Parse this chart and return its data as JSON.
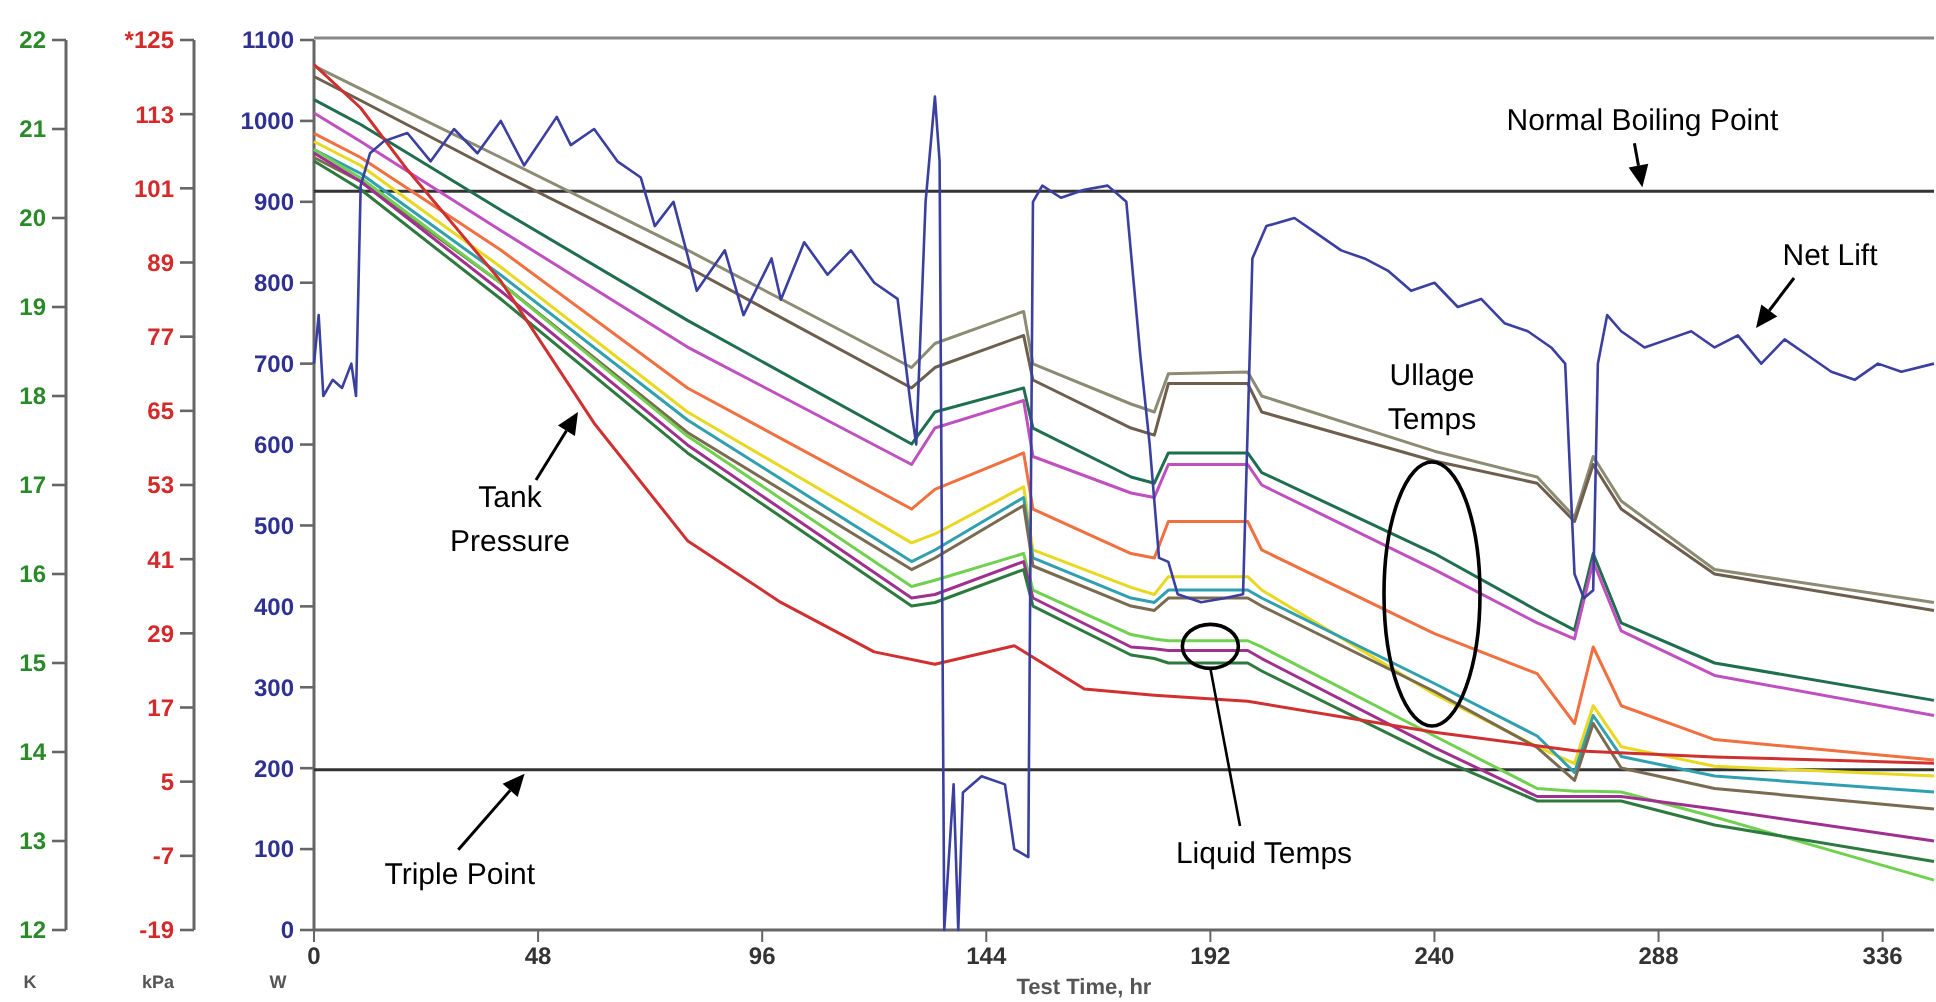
{
  "chart_data": {
    "type": "line",
    "xlabel": "Test Time, hr",
    "ylabel": "K",
    "y2label": "kPa",
    "y3label": "W",
    "xlim": [
      0,
      347
    ],
    "xticks": [
      0,
      48,
      96,
      144,
      192,
      240,
      288,
      336
    ],
    "ylim": [
      12,
      22
    ],
    "yticks": [
      12,
      13,
      14,
      15,
      16,
      17,
      18,
      19,
      20,
      21,
      22
    ],
    "y2lim": [
      -19,
      125
    ],
    "y2ticks": [
      -19,
      -7,
      5,
      17,
      29,
      41,
      53,
      65,
      77,
      89,
      101,
      113,
      {
        "value": 125,
        "label": "*125"
      }
    ],
    "y3lim": [
      0,
      1100
    ],
    "y3ticks": [
      0,
      100,
      200,
      300,
      400,
      500,
      600,
      700,
      800,
      900,
      1000,
      1100
    ],
    "grid": false,
    "line_style": "solid",
    "marker": "none",
    "x": [
      0,
      10,
      40,
      80,
      128,
      133,
      152,
      154,
      175,
      180,
      183,
      200,
      203,
      240,
      262,
      270,
      274,
      280,
      300,
      347
    ],
    "series": [
      {
        "color": "#8c8c74",
        "values": [
          21.71,
          21.45,
          20.68,
          19.64,
          18.32,
          18.59,
          18.95,
          18.36,
          17.91,
          17.82,
          18.25,
          18.27,
          18.0,
          17.38,
          17.09,
          16.64,
          17.32,
          16.82,
          16.05,
          15.68
        ]
      },
      {
        "color": "#6e5e4e",
        "values": [
          21.59,
          21.32,
          20.5,
          19.45,
          18.09,
          18.32,
          18.68,
          18.18,
          17.64,
          17.56,
          18.14,
          18.14,
          17.82,
          17.27,
          17.02,
          16.59,
          17.23,
          16.73,
          16.0,
          15.59
        ]
      },
      {
        "color": "#1f6e4e",
        "values": [
          21.33,
          21.05,
          20.09,
          18.85,
          17.46,
          17.82,
          18.09,
          17.64,
          17.09,
          17.02,
          17.36,
          17.36,
          17.14,
          16.23,
          15.59,
          15.37,
          16.23,
          15.45,
          15.0,
          14.58
        ]
      },
      {
        "color": "#c050c0",
        "values": [
          21.18,
          20.86,
          19.86,
          18.55,
          17.23,
          17.64,
          17.95,
          17.32,
          16.91,
          16.86,
          17.23,
          17.23,
          17.0,
          16.05,
          15.45,
          15.27,
          16.14,
          15.36,
          14.86,
          14.41
        ]
      },
      {
        "color": "#f07040",
        "values": [
          20.95,
          20.68,
          19.64,
          18.09,
          16.73,
          16.95,
          17.36,
          16.73,
          16.23,
          16.18,
          16.59,
          16.59,
          16.27,
          15.33,
          14.88,
          14.32,
          15.18,
          14.52,
          14.14,
          13.91
        ]
      },
      {
        "color": "#e8d820",
        "values": [
          20.86,
          20.59,
          19.45,
          17.82,
          16.35,
          16.45,
          16.98,
          16.27,
          15.85,
          15.77,
          15.97,
          15.97,
          15.82,
          14.65,
          14.06,
          13.87,
          14.52,
          14.06,
          13.84,
          13.73
        ]
      },
      {
        "color": "#30a0b0",
        "values": [
          20.77,
          20.5,
          19.36,
          17.73,
          16.14,
          16.27,
          16.86,
          16.18,
          15.73,
          15.68,
          15.82,
          15.82,
          15.73,
          14.77,
          14.18,
          13.77,
          14.41,
          13.95,
          13.73,
          13.55
        ]
      },
      {
        "color": "#7a6a50",
        "values": [
          20.68,
          20.41,
          19.27,
          17.59,
          16.05,
          16.18,
          16.77,
          16.09,
          15.64,
          15.59,
          15.73,
          15.73,
          15.64,
          14.68,
          14.05,
          13.68,
          14.32,
          13.82,
          13.59,
          13.36
        ]
      },
      {
        "color": "#70d050",
        "values": [
          20.77,
          20.45,
          19.27,
          17.55,
          15.86,
          15.93,
          16.23,
          15.82,
          15.32,
          15.27,
          15.25,
          15.25,
          15.18,
          14.18,
          13.59,
          13.56,
          13.56,
          13.55,
          13.27,
          12.56
        ]
      },
      {
        "color": "#a03090",
        "values": [
          20.73,
          20.41,
          19.18,
          17.45,
          15.73,
          15.77,
          16.14,
          15.73,
          15.18,
          15.16,
          15.14,
          15.14,
          15.05,
          14.05,
          13.5,
          13.5,
          13.5,
          13.5,
          13.36,
          13.0
        ]
      },
      {
        "color": "#2e7a3e",
        "values": [
          20.64,
          20.32,
          19.09,
          17.36,
          15.64,
          15.68,
          16.05,
          15.64,
          15.09,
          15.05,
          15.0,
          15.0,
          14.91,
          13.95,
          13.45,
          13.45,
          13.45,
          13.45,
          13.18,
          12.77
        ]
      },
      {
        "axis": "y2",
        "color": "#d03030",
        "x": [
          0,
          10,
          20,
          40,
          60,
          80,
          100,
          120,
          133,
          150,
          165,
          180,
          200,
          240,
          270,
          300,
          347
        ],
        "values": [
          121,
          114,
          104,
          86,
          63,
          44,
          34,
          26,
          24,
          27,
          20,
          19,
          18,
          13,
          10,
          9,
          8
        ]
      },
      {
        "axis": "y3",
        "color": "#3a3fa0",
        "x": [
          0,
          1,
          2,
          4,
          6,
          8,
          9,
          10,
          12,
          15,
          20,
          25,
          30,
          35,
          40,
          45,
          52,
          55,
          60,
          65,
          70,
          73,
          77,
          82,
          88,
          92,
          98,
          100,
          105,
          110,
          115,
          120,
          125,
          128,
          129,
          131,
          133,
          134,
          135,
          137,
          138,
          139,
          143,
          148,
          150,
          153,
          154,
          156,
          160,
          165,
          170,
          174,
          177,
          179,
          180,
          181,
          183,
          185,
          190,
          195,
          199,
          201,
          204,
          210,
          215,
          220,
          225,
          230,
          235,
          240,
          245,
          250,
          255,
          260,
          265,
          268,
          270,
          272,
          274,
          275,
          277,
          280,
          285,
          290,
          295,
          300,
          305,
          310,
          315,
          320,
          325,
          330,
          335,
          340,
          347
        ],
        "values": [
          700,
          760,
          660,
          680,
          670,
          700,
          660,
          920,
          960,
          975,
          985,
          950,
          990,
          960,
          1000,
          945,
          1005,
          970,
          990,
          950,
          930,
          870,
          900,
          790,
          840,
          760,
          830,
          779,
          850,
          810,
          840,
          800,
          780,
          640,
          600,
          900,
          1030,
          950,
          0,
          180,
          0,
          170,
          190,
          180,
          100,
          90,
          900,
          920,
          905,
          915,
          920,
          900,
          710,
          600,
          530,
          460,
          455,
          415,
          405,
          410,
          415,
          830,
          870,
          880,
          860,
          840,
          830,
          815,
          790,
          800,
          770,
          780,
          750,
          740,
          720,
          700,
          440,
          410,
          420,
          700,
          760,
          740,
          720,
          730,
          740,
          720,
          735,
          700,
          730,
          710,
          690,
          680,
          700,
          690,
          700
        ]
      }
    ],
    "ref_lines": [
      {
        "axis": "y",
        "value": 20.3,
        "label": "Normal Boiling Point",
        "color": "#333333"
      },
      {
        "axis": "y",
        "value": 13.8,
        "label": "Triple Point",
        "color": "#333333"
      }
    ],
    "annotations": [
      "Net Lift",
      "Tank Pressure",
      "Ullage Temps",
      {
        "text": "Liquid Temps",
        "x": 192,
        "y": 14.94
      }
    ]
  }
}
